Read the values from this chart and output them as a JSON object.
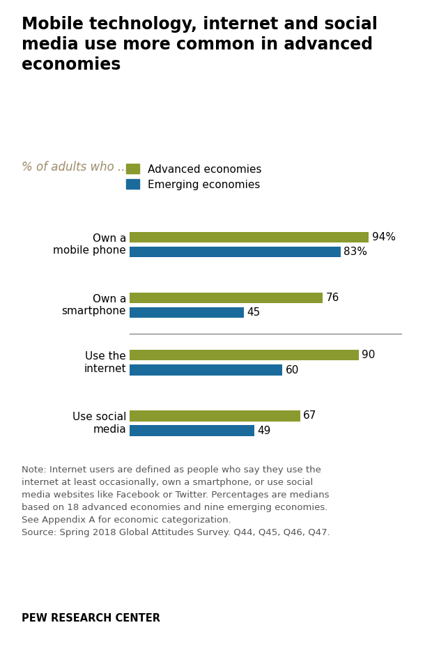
{
  "title": "Mobile technology, internet and social\nmedia use more common in advanced\neconomies",
  "subtitle": "% of adults who ...",
  "categories": [
    "Own a\nmobile phone",
    "Own a\nsmartphone",
    "Use the\ninternet",
    "Use social\nmedia"
  ],
  "advanced_values": [
    94,
    76,
    90,
    67
  ],
  "emerging_values": [
    83,
    45,
    60,
    49
  ],
  "advanced_labels": [
    "94%",
    "76",
    "90",
    "67"
  ],
  "emerging_labels": [
    "83%",
    "45",
    "60",
    "49"
  ],
  "advanced_color": "#8B9A2E",
  "emerging_color": "#1B6A9C",
  "legend_labels": [
    "Advanced economies",
    "Emerging economies"
  ],
  "note_text": "Note: Internet users are defined as people who say they use the\ninternet at least occasionally, own a smartphone, or use social\nmedia websites like Facebook or Twitter. Percentages are medians\nbased on 18 advanced economies and nine emerging economies.\nSee Appendix A for economic categorization.\nSource: Spring 2018 Global Attitudes Survey. Q44, Q45, Q46, Q47.",
  "source_label": "PEW RESEARCH CENTER",
  "xlim": [
    0,
    107
  ],
  "title_fontsize": 17,
  "subtitle_fontsize": 12,
  "label_fontsize": 11,
  "note_fontsize": 9.5,
  "value_fontsize": 11,
  "legend_fontsize": 11,
  "separator_after": 1
}
